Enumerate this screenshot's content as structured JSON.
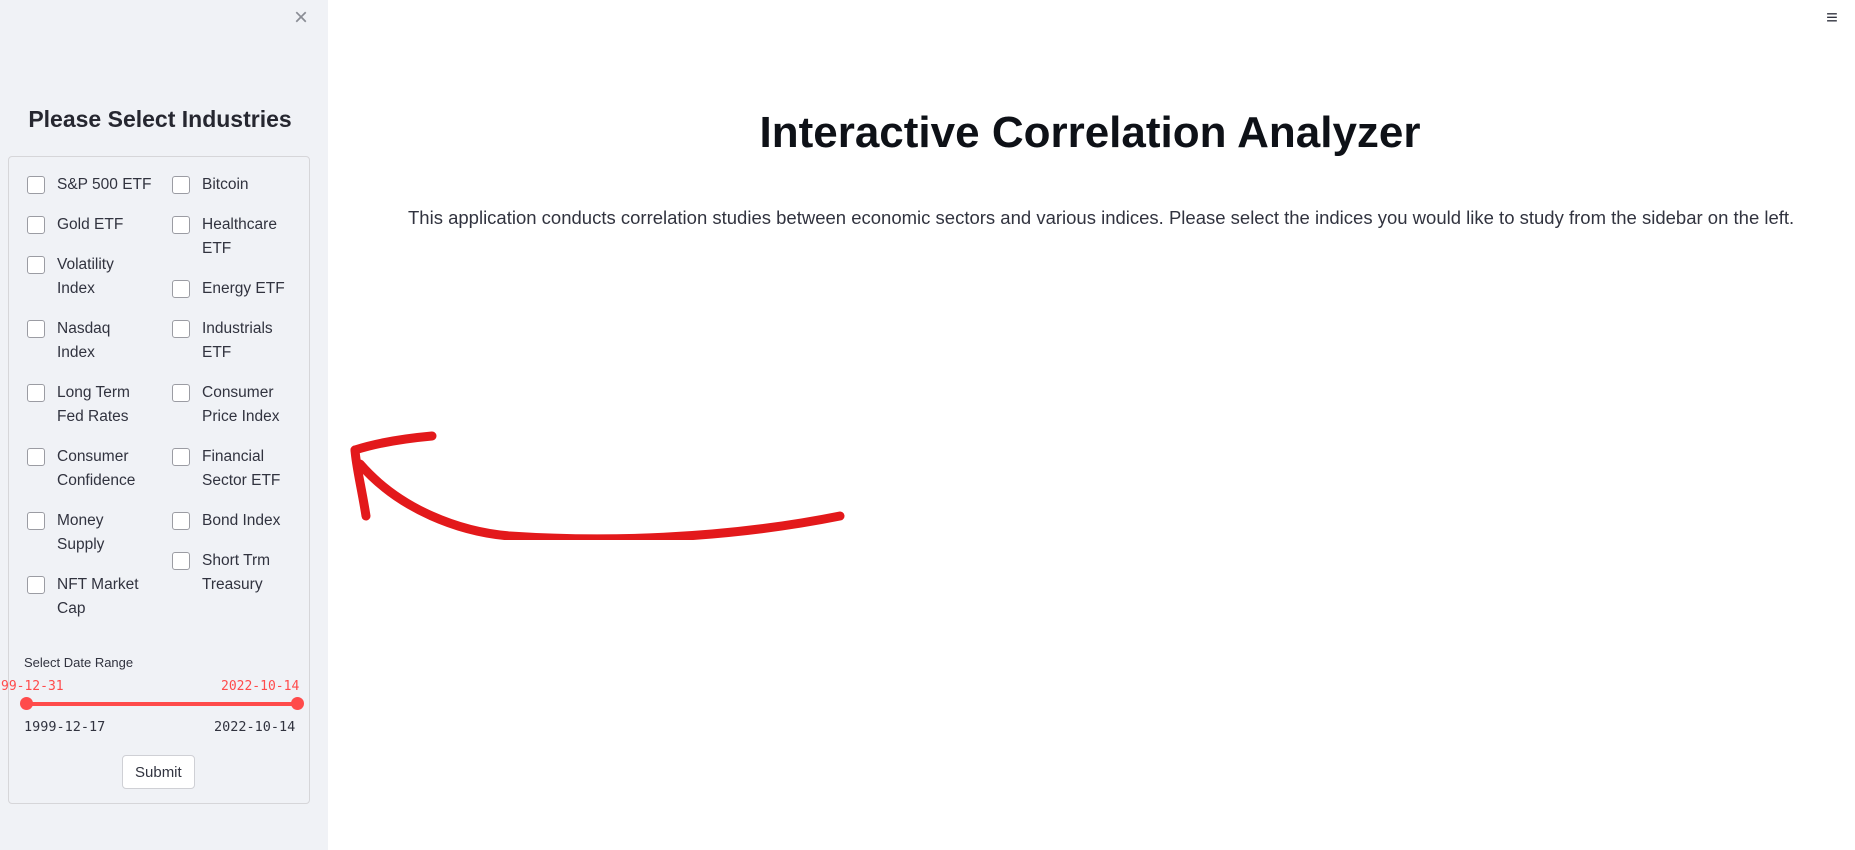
{
  "sidebar": {
    "close_icon": "×",
    "title": "Please Select Industries",
    "checkboxes_col1": [
      {
        "label": "S&P 500 ETF"
      },
      {
        "label": "Gold ETF"
      },
      {
        "label": "Volatility\nIndex"
      },
      {
        "label": "Nasdaq\nIndex"
      },
      {
        "label": "Long Term\nFed Rates"
      },
      {
        "label": "Consumer\nConfidence"
      },
      {
        "label": "Money\nSupply"
      },
      {
        "label": "NFT Market\nCap"
      }
    ],
    "checkboxes_col2": [
      {
        "label": "Bitcoin"
      },
      {
        "label": "Healthcare\nETF"
      },
      {
        "label": "Energy ETF"
      },
      {
        "label": "Industrials\nETF"
      },
      {
        "label": "Consumer\nPrice Index"
      },
      {
        "label": "Financial\nSector ETF"
      },
      {
        "label": "Bond Index"
      },
      {
        "label": "Short Trm\nTreasury"
      }
    ],
    "date_range": {
      "label": "Select Date Range",
      "selected_start": "99-12-31",
      "selected_end": "2022-10-14",
      "min": "1999-12-17",
      "max": "2022-10-14"
    },
    "submit_label": "Submit"
  },
  "main": {
    "menu_icon": "≡",
    "title": "Interactive Correlation Analyzer",
    "intro": "This application conducts correlation studies between economic sectors and various indices. Please select the indices you would like to study from the sidebar on the left."
  },
  "colors": {
    "accent": "#ff4b4b",
    "arrow": "#e3191b",
    "sidebar_bg": "#f0f2f6"
  }
}
